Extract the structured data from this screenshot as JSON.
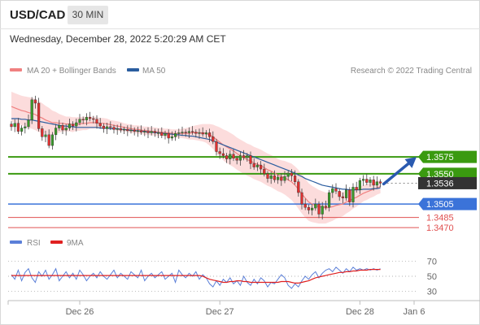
{
  "header": {
    "symbol": "USD/CAD",
    "timeframe": "30 MIN"
  },
  "timestamp": "Wednesday, December 28, 2022 5:20:29 AM CET",
  "legend": {
    "ma20_label": "MA 20 + Bollinger Bands",
    "ma50_label": "MA 50",
    "credit": "Research © 2022 Trading Central",
    "rsi_label": "RSI",
    "rsi_ma_label": "9MA"
  },
  "colors": {
    "up_candle": "#3a9a2a",
    "down_candle": "#e03030",
    "ma20": "#f08080",
    "ma50": "#2a5d9f",
    "bollinger_fill": "#fbd6d6",
    "resistance": "#3a9a10",
    "pivot": "#3b73d9",
    "support": "#e05050",
    "arrow": "#2a5ab0",
    "rsi": "#5b7fd8",
    "rsi_ma": "#e02020"
  },
  "chart_data": [
    {
      "type": "candlestick",
      "title": "USD/CAD",
      "timeframe": "30 MIN",
      "x_ticks": [
        "Dec 26",
        "Dec 27",
        "Dec 28",
        "Jan 6"
      ],
      "y_range": [
        1.3458,
        1.369
      ],
      "current_price": "1.3536",
      "levels": [
        {
          "label": "1.3575",
          "kind": "resistance",
          "value": 1.3575
        },
        {
          "label": "1.3550",
          "kind": "resistance",
          "value": 1.355
        },
        {
          "label": "1.3536",
          "kind": "last",
          "value": 1.3536
        },
        {
          "label": "1.3505",
          "kind": "pivot",
          "value": 1.3505
        },
        {
          "label": "1.3485",
          "kind": "support",
          "value": 1.3485
        },
        {
          "label": "1.3470",
          "kind": "support",
          "value": 1.347
        }
      ],
      "forecast_target": 1.3575,
      "closes": [
        1.362,
        1.3625,
        1.3613,
        1.3618,
        1.362,
        1.363,
        1.366,
        1.3655,
        1.3617,
        1.3605,
        1.3608,
        1.3592,
        1.3608,
        1.3618,
        1.3622,
        1.3615,
        1.3618,
        1.3624,
        1.3621,
        1.3626,
        1.3631,
        1.363,
        1.3634,
        1.3632,
        1.3631,
        1.3625,
        1.3621,
        1.3617,
        1.362,
        1.3619,
        1.3616,
        1.3617,
        1.3615,
        1.3616,
        1.3614,
        1.3615,
        1.3613,
        1.3614,
        1.3612,
        1.3613,
        1.3611,
        1.3613,
        1.3611,
        1.3611,
        1.3607,
        1.361,
        1.3603,
        1.3605,
        1.361,
        1.3611,
        1.3612,
        1.3611,
        1.3613,
        1.3612,
        1.361,
        1.3611,
        1.3609,
        1.3611,
        1.3605,
        1.3598,
        1.3583,
        1.358,
        1.3577,
        1.3572,
        1.3579,
        1.3573,
        1.357,
        1.3577,
        1.3574,
        1.3577,
        1.3565,
        1.356,
        1.3563,
        1.3557,
        1.355,
        1.3543,
        1.3547,
        1.3541,
        1.3545,
        1.354,
        1.3546,
        1.3551,
        1.3547,
        1.3538,
        1.3522,
        1.3505,
        1.35,
        1.3496,
        1.3499,
        1.3505,
        1.349,
        1.3502,
        1.35,
        1.3522,
        1.3528,
        1.3524,
        1.3516,
        1.3514,
        1.3526,
        1.3508,
        1.353,
        1.3526,
        1.354,
        1.3542,
        1.3537,
        1.3541,
        1.3533,
        1.3538,
        1.3536
      ],
      "ma20": [
        1.365,
        1.3648,
        1.3646,
        1.3644,
        1.3643,
        1.3641,
        1.364,
        1.3638,
        1.3635,
        1.3633,
        1.363,
        1.3628,
        1.3626,
        1.3626,
        1.3625,
        1.3625,
        1.3624,
        1.3624,
        1.3623,
        1.3624,
        1.3624,
        1.3625,
        1.3625,
        1.3626,
        1.3626,
        1.3626,
        1.3625,
        1.3625,
        1.3624,
        1.3623,
        1.3622,
        1.3621,
        1.362,
        1.3619,
        1.3618,
        1.3617,
        1.3616,
        1.3616,
        1.3615,
        1.3614,
        1.3614,
        1.3613,
        1.3613,
        1.3612,
        1.3612,
        1.3611,
        1.3611,
        1.361,
        1.361,
        1.361,
        1.361,
        1.361,
        1.361,
        1.3611,
        1.3611,
        1.3611,
        1.3611,
        1.361,
        1.3608,
        1.3605,
        1.3601,
        1.3597,
        1.3593,
        1.359,
        1.3587,
        1.3584,
        1.358,
        1.3577,
        1.3574,
        1.3571,
        1.3569,
        1.3566,
        1.3564,
        1.3562,
        1.3559,
        1.3556,
        1.3554,
        1.3551,
        1.3548,
        1.3546,
        1.3544,
        1.3541,
        1.3538,
        1.3533,
        1.3527,
        1.352,
        1.3514,
        1.3508,
        1.3505,
        1.3503,
        1.3501,
        1.35,
        1.3499,
        1.35,
        1.3501,
        1.3503,
        1.3504,
        1.3505,
        1.3508,
        1.351,
        1.3513,
        1.3515,
        1.3518,
        1.3521,
        1.3523,
        1.3525,
        1.3527,
        1.3529,
        1.3531
      ],
      "ma50": [
        1.3632,
        1.3632,
        1.3632,
        1.3631,
        1.3631,
        1.363,
        1.363,
        1.3629,
        1.3628,
        1.3627,
        1.3626,
        1.3625,
        1.3624,
        1.3623,
        1.3622,
        1.3621,
        1.3621,
        1.362,
        1.362,
        1.3619,
        1.3619,
        1.3619,
        1.3619,
        1.3619,
        1.3619,
        1.3619,
        1.3618,
        1.3618,
        1.3618,
        1.3617,
        1.3617,
        1.3617,
        1.3616,
        1.3616,
        1.3615,
        1.3615,
        1.3614,
        1.3614,
        1.3613,
        1.3613,
        1.3612,
        1.3612,
        1.3611,
        1.3611,
        1.361,
        1.361,
        1.3609,
        1.3609,
        1.3608,
        1.3608,
        1.3607,
        1.3607,
        1.3606,
        1.3606,
        1.3605,
        1.3604,
        1.3603,
        1.3602,
        1.3601,
        1.3599,
        1.3597,
        1.3595,
        1.3593,
        1.3591,
        1.3589,
        1.3587,
        1.3585,
        1.3583,
        1.3581,
        1.3579,
        1.3577,
        1.3575,
        1.3573,
        1.3571,
        1.3569,
        1.3567,
        1.3565,
        1.3563,
        1.3561,
        1.3559,
        1.3557,
        1.3555,
        1.3553,
        1.3551,
        1.3548,
        1.3546,
        1.3543,
        1.3541,
        1.3539,
        1.3537,
        1.3535,
        1.3533,
        1.3532,
        1.3531,
        1.353,
        1.3529,
        1.3528,
        1.3527,
        1.3527,
        1.3526,
        1.3526,
        1.3526,
        1.3526,
        1.3527,
        1.3527,
        1.3527,
        1.3528,
        1.3528,
        1.3529
      ],
      "band_width": [
        0.0022,
        0.0022,
        0.0022,
        0.0022,
        0.0022,
        0.0023,
        0.0023,
        0.0023,
        0.0023,
        0.0022,
        0.0021,
        0.002,
        0.0018,
        0.0016,
        0.0014,
        0.0012,
        0.0011,
        0.0011,
        0.0011,
        0.001,
        0.001,
        0.001,
        0.001,
        0.0009,
        0.0009,
        0.0008,
        0.0008,
        0.0008,
        0.0008,
        0.0007,
        0.0007,
        0.0007,
        0.0007,
        0.0006,
        0.0006,
        0.0006,
        0.0006,
        0.0006,
        0.0006,
        0.0006,
        0.0006,
        0.0006,
        0.0006,
        0.0006,
        0.0006,
        0.0006,
        0.0006,
        0.0006,
        0.0006,
        0.0006,
        0.0007,
        0.0008,
        0.0009,
        0.001,
        0.0011,
        0.0012,
        0.0013,
        0.0014,
        0.0016,
        0.0018,
        0.002,
        0.0022,
        0.0023,
        0.0024,
        0.0024,
        0.0024,
        0.0024,
        0.0024,
        0.0024,
        0.0024,
        0.0024,
        0.0024,
        0.0024,
        0.0024,
        0.0024,
        0.0024,
        0.0024,
        0.0024,
        0.0024,
        0.0024,
        0.0025,
        0.0026,
        0.0027,
        0.0028,
        0.0029,
        0.0029,
        0.0029,
        0.0028,
        0.0027,
        0.0026,
        0.0025,
        0.0024,
        0.0023,
        0.0022,
        0.0021,
        0.002,
        0.0019,
        0.0018,
        0.0017,
        0.0016,
        0.0015,
        0.0014,
        0.0013,
        0.0012,
        0.0012,
        0.0011,
        0.0011,
        0.001,
        0.001
      ]
    },
    {
      "type": "line",
      "title": "RSI",
      "y_ticks": [
        70,
        50,
        30
      ],
      "y_range": [
        20,
        80
      ],
      "series": [
        {
          "name": "RSI",
          "values": [
            52,
            46,
            58,
            44,
            55,
            60,
            48,
            42,
            56,
            50,
            58,
            46,
            52,
            60,
            44,
            50,
            56,
            48,
            54,
            46,
            58,
            52,
            44,
            50,
            54,
            48,
            56,
            50,
            46,
            52,
            58,
            48,
            54,
            50,
            46,
            56,
            52,
            48,
            58,
            44,
            50,
            54,
            48,
            52,
            56,
            46,
            50,
            54,
            42,
            58,
            52,
            48,
            54,
            50,
            56,
            46,
            52,
            48,
            40,
            36,
            44,
            38,
            46,
            42,
            48,
            40,
            44,
            38,
            50,
            42,
            38,
            46,
            40,
            48,
            44,
            36,
            42,
            40,
            46,
            52,
            48,
            38,
            34,
            40,
            36,
            44,
            50,
            46,
            52,
            56,
            48,
            54,
            58,
            60,
            56,
            62,
            58,
            54,
            60,
            56,
            62,
            58,
            60,
            58,
            60,
            58,
            60,
            58,
            60
          ]
        },
        {
          "name": "9MA",
          "values": [
            51,
            51,
            51,
            51,
            51,
            51,
            51,
            51,
            51,
            51,
            51,
            51,
            51,
            51,
            51,
            51,
            51,
            51,
            51,
            51,
            51,
            51,
            51,
            51,
            51,
            51,
            51,
            51,
            51,
            51,
            51,
            51,
            51,
            51,
            51,
            51,
            51,
            51,
            51,
            51,
            51,
            51,
            51,
            51,
            51,
            51,
            51,
            51,
            51,
            51,
            51,
            51,
            51,
            51,
            51,
            51,
            50,
            48,
            46,
            45,
            44,
            43,
            42,
            42,
            43,
            43,
            44,
            44,
            43,
            43,
            42,
            42,
            42,
            42,
            42,
            42,
            42,
            42,
            42,
            43,
            43,
            43,
            42,
            41,
            41,
            42,
            43,
            44,
            46,
            48,
            49,
            50,
            51,
            52,
            53,
            54,
            55,
            55,
            56,
            56,
            57,
            57,
            58,
            58,
            58,
            59,
            59,
            59,
            59
          ]
        }
      ]
    }
  ]
}
